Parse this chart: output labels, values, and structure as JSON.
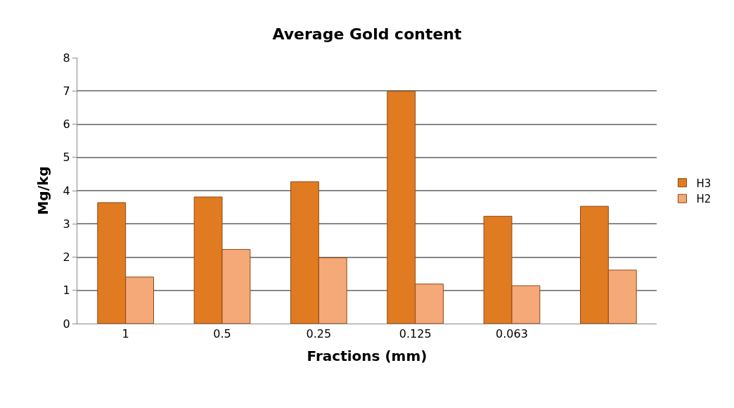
{
  "chart_data": {
    "type": "bar",
    "title": "Average Gold content",
    "xlabel": "Fractions (mm)",
    "ylabel": "Mg/kg",
    "categories": [
      "1",
      "0.5",
      "0.25",
      "0.125",
      "0.063",
      null
    ],
    "series": [
      {
        "name": "H3",
        "color": "#e07b22",
        "values": [
          3.64,
          3.81,
          4.27,
          6.99,
          3.23,
          3.53
        ]
      },
      {
        "name": "H2",
        "color": "#f5a878",
        "values": [
          1.4,
          2.23,
          1.98,
          1.19,
          1.14,
          1.61
        ]
      }
    ],
    "ylim": [
      0,
      8
    ],
    "yticks": [
      0,
      1,
      2,
      3,
      4,
      5,
      6,
      7,
      8
    ],
    "grid": "y",
    "legend": "right"
  }
}
